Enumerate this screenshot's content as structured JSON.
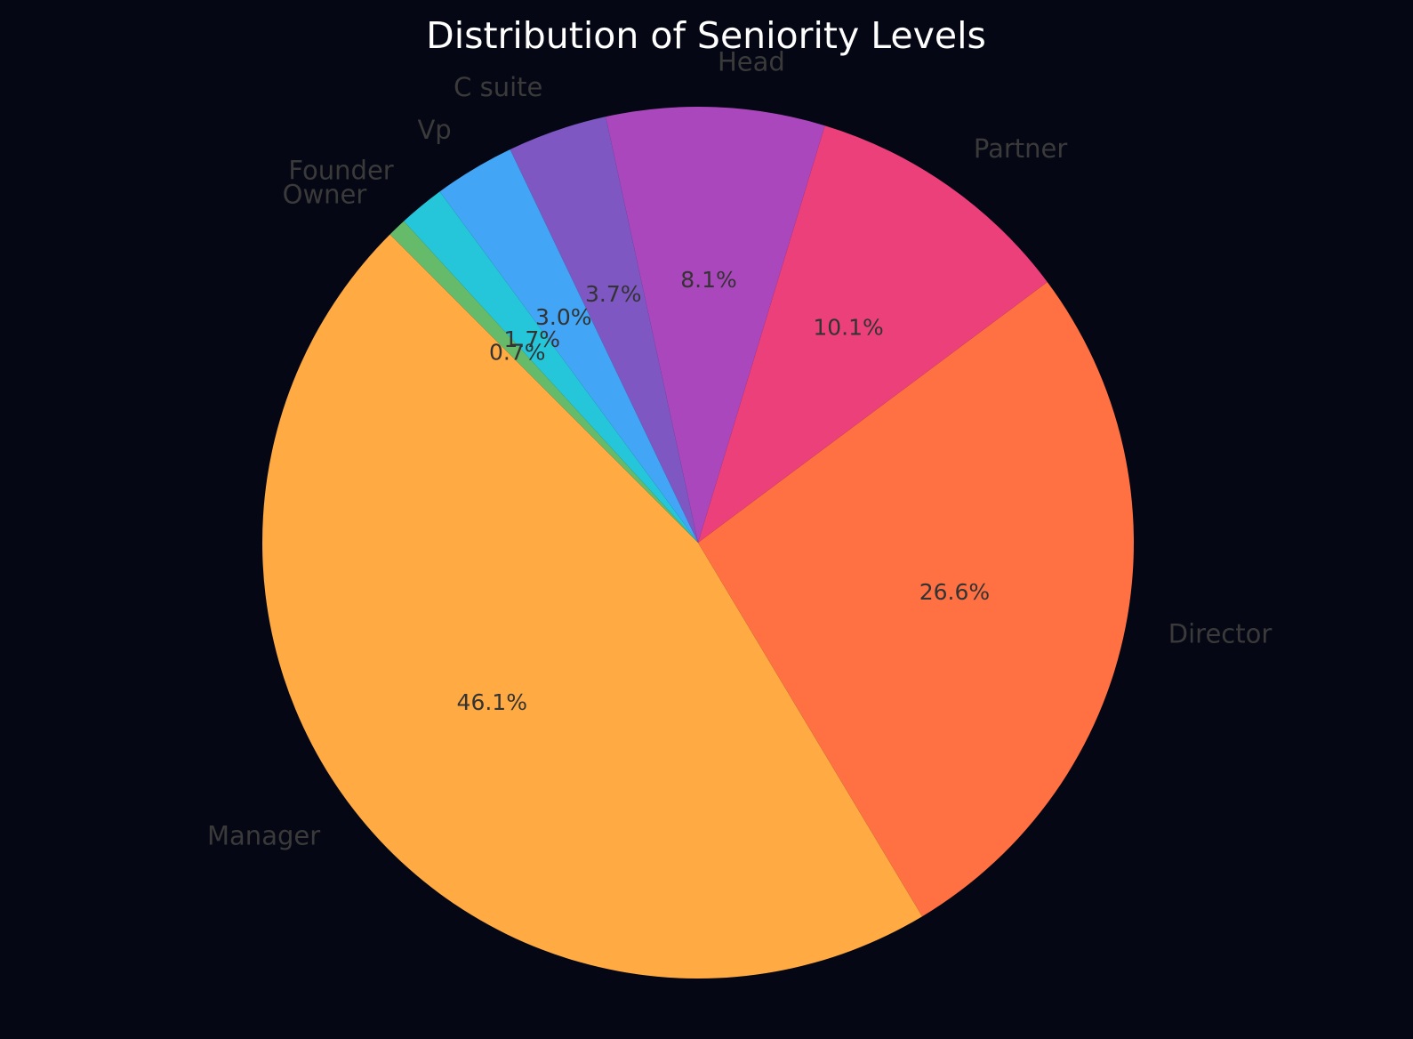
{
  "chart_data": {
    "type": "pie",
    "title": "Distribution of Seniority Levels",
    "start_angle_deg": 135,
    "direction": "counterclockwise",
    "slices": [
      {
        "label": "Manager",
        "value": 46.1,
        "pct_label": "46.1%",
        "color": "#FFAA42"
      },
      {
        "label": "Director",
        "value": 26.6,
        "pct_label": "26.6%",
        "color": "#FF7043"
      },
      {
        "label": "Partner",
        "value": 10.1,
        "pct_label": "10.1%",
        "color": "#EC407A"
      },
      {
        "label": "Head",
        "value": 8.1,
        "pct_label": "8.1%",
        "color": "#AB47BC"
      },
      {
        "label": "C suite",
        "value": 3.7,
        "pct_label": "3.7%",
        "color": "#7E57C2"
      },
      {
        "label": "Vp",
        "value": 3.0,
        "pct_label": "3.0%",
        "color": "#42A5F5"
      },
      {
        "label": "Founder",
        "value": 1.7,
        "pct_label": "1.7%",
        "color": "#26C6DA"
      },
      {
        "label": "Owner",
        "value": 0.7,
        "pct_label": "0.7%",
        "color": "#66BB6A"
      }
    ]
  }
}
